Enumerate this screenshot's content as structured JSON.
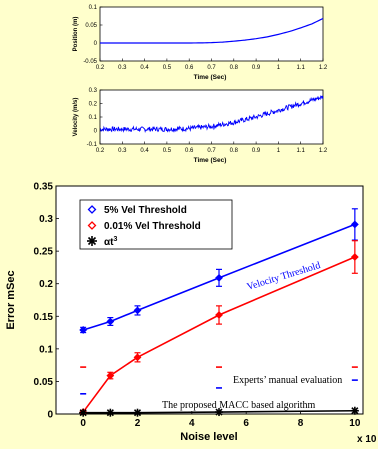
{
  "colors": {
    "background": "#ffffcc",
    "blue": "#0000ff",
    "red": "#ff0000",
    "black": "#000000"
  },
  "chart_data": [
    {
      "id": "position",
      "type": "line",
      "xlabel": "Time (Sec)",
      "ylabel": "Position (m)",
      "xlim": [
        0.2,
        1.2
      ],
      "ylim": [
        -0.05,
        0.1
      ],
      "xticks": [
        "0.2",
        "0.3",
        "0.4",
        "0.5",
        "0.6",
        "0.7",
        "0.8",
        "0.9",
        "1",
        "1.1",
        "1.2"
      ],
      "yticks": [
        "-0.05",
        "0",
        "0.05",
        "0.1"
      ],
      "series": [
        {
          "color": "#0000ff",
          "x": [
            0.2,
            0.6,
            0.65,
            0.7,
            0.75,
            0.8,
            0.85,
            0.9,
            0.95,
            1.0,
            1.05,
            1.1,
            1.15,
            1.2
          ],
          "y": [
            0,
            0,
            0.0003,
            0.001,
            0.0025,
            0.005,
            0.008,
            0.012,
            0.017,
            0.024,
            0.032,
            0.042,
            0.053,
            0.068
          ]
        }
      ]
    },
    {
      "id": "velocity",
      "type": "line",
      "xlabel": "Time (Sec)",
      "ylabel": "Velocity (m/s)",
      "xlim": [
        0.2,
        1.2
      ],
      "ylim": [
        -0.1,
        0.3
      ],
      "xticks": [
        "0.2",
        "0.3",
        "0.4",
        "0.5",
        "0.6",
        "0.7",
        "0.8",
        "0.9",
        "1",
        "1.1",
        "1.2"
      ],
      "yticks": [
        "-0.1",
        "0",
        "0.1",
        "0.2",
        "0.3"
      ],
      "noise_amplitude": 0.018,
      "series": [
        {
          "color": "#0000ff",
          "x": [
            0.2,
            0.3,
            0.4,
            0.5,
            0.6,
            0.7,
            0.8,
            0.9,
            1.0,
            1.1,
            1.2
          ],
          "y": [
            0.01,
            0.01,
            0.01,
            0.01,
            0.015,
            0.03,
            0.06,
            0.1,
            0.15,
            0.2,
            0.25
          ]
        }
      ]
    },
    {
      "id": "error",
      "type": "line",
      "xlabel": "Noise level",
      "ylabel": "Error mSec",
      "xlim": [
        -1,
        10.3
      ],
      "ylim": [
        0,
        0.35
      ],
      "xticks": [
        "0",
        "2",
        "4",
        "6",
        "8",
        "10"
      ],
      "yticks": [
        "0",
        "0.05",
        "0.1",
        "0.15",
        "0.2",
        "0.25",
        "0.3",
        "0.35"
      ],
      "x_multiplier": "x 10",
      "legend_placement": "top-left",
      "series": [
        {
          "name": "5% Vel Threshold",
          "color": "#0000ff",
          "marker": "diamond",
          "x": [
            0,
            1,
            2,
            5,
            10
          ],
          "y": [
            0.129,
            0.142,
            0.159,
            0.209,
            0.291
          ],
          "err": [
            0.004,
            0.006,
            0.007,
            0.013,
            0.024
          ]
        },
        {
          "name": "0.01% Vel Threshold",
          "color": "#ff0000",
          "marker": "diamond",
          "x": [
            0,
            1,
            2,
            5,
            10
          ],
          "y": [
            0.003,
            0.059,
            0.087,
            0.152,
            0.241
          ],
          "err": [
            0.002,
            0.005,
            0.007,
            0.014,
            0.025
          ]
        },
        {
          "name": "αt³",
          "color": "#000000",
          "marker": "star",
          "x": [
            0,
            1,
            2,
            5,
            10
          ],
          "y": [
            0.002,
            0.002,
            0.002,
            0.003,
            0.005
          ],
          "err": [
            0,
            0,
            0,
            0,
            0
          ]
        }
      ],
      "legend_labels": [
        "5% Vel Threshold",
        "0.01% Vel Threshold"
      ],
      "legend_alpha_prefix": "αt",
      "legend_alpha_exp": "3",
      "manual_marks": [
        {
          "x": 0,
          "y": 0.072,
          "color": "#ff0000"
        },
        {
          "x": 0,
          "y": 0.031,
          "color": "#0000ff"
        },
        {
          "x": 5,
          "y": 0.072,
          "color": "#ff0000"
        },
        {
          "x": 5,
          "y": 0.04,
          "color": "#0000ff"
        },
        {
          "x": 10,
          "y": 0.072,
          "color": "#ff0000"
        },
        {
          "x": 10,
          "y": 0.052,
          "color": "#0000ff"
        }
      ],
      "annotations": {
        "velocity_threshold": "Velocity Threshold",
        "experts": "Experts’ manual evaluation",
        "macc": "The proposed MACC based algorithm"
      }
    }
  ]
}
